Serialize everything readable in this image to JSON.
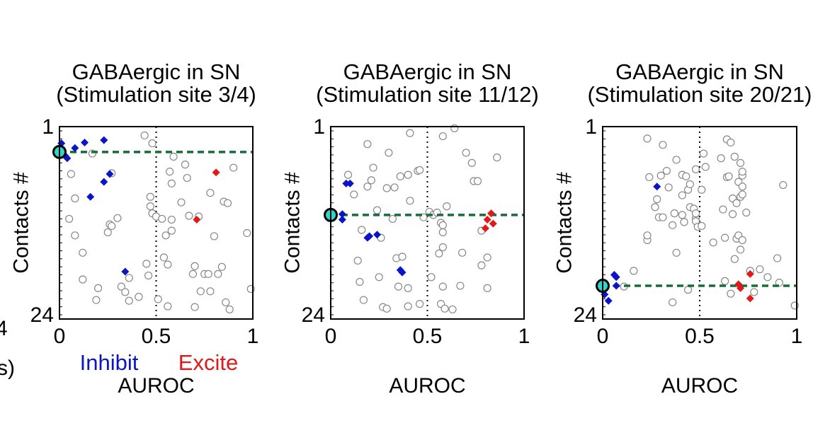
{
  "edge_fragments": [
    "4",
    "s)"
  ],
  "legend": {
    "inhibit_label": "Inhibit",
    "excite_label": "Excite",
    "inhibit_color": "#0a14c8",
    "excite_color": "#e01a1a"
  },
  "colors": {
    "neutral": "#888888",
    "reference_line": "#1a6b3c",
    "stim_marker": "#2fd6c8"
  },
  "chart_data": [
    {
      "type": "scatter",
      "title": [
        "GABAergic in SN",
        "(Stimulation site 3/4)"
      ],
      "xlabel": "AUROC",
      "ylabel": "Contacts #",
      "xlim": [
        0,
        1
      ],
      "ylim": [
        1,
        24
      ],
      "y_inverted": true,
      "x_ticks": [
        "0",
        "0.5",
        "1"
      ],
      "y_ticks": [
        "1",
        "24"
      ],
      "chance_line_x": 0.5,
      "stim_site": 3.5,
      "show_legend": true,
      "neutral": [
        [
          0.06,
          6.3
        ],
        [
          0.08,
          9.4
        ],
        [
          0.08,
          14.1
        ],
        [
          0.12,
          16.3
        ],
        [
          0.05,
          12.0
        ],
        [
          0.12,
          19.7
        ],
        [
          0.17,
          3.7
        ],
        [
          0.19,
          22.3
        ],
        [
          0.2,
          20.8
        ],
        [
          0.25,
          13.7
        ],
        [
          0.26,
          12.7
        ],
        [
          0.27,
          6.2
        ],
        [
          0.27,
          12.9
        ],
        [
          0.3,
          11.9
        ],
        [
          0.32,
          20.6
        ],
        [
          0.34,
          21.3
        ],
        [
          0.36,
          19.5
        ],
        [
          0.36,
          22.4
        ],
        [
          0.41,
          21.9
        ],
        [
          0.44,
          1.4
        ],
        [
          0.45,
          17.7
        ],
        [
          0.46,
          19.2
        ],
        [
          0.47,
          9.2
        ],
        [
          0.47,
          10.4
        ],
        [
          0.48,
          11.3
        ],
        [
          0.48,
          2.4
        ],
        [
          0.5,
          11.7
        ],
        [
          0.51,
          22.2
        ],
        [
          0.53,
          12.0
        ],
        [
          0.54,
          16.9
        ],
        [
          0.55,
          14.1
        ],
        [
          0.56,
          17.8
        ],
        [
          0.56,
          23.1
        ],
        [
          0.57,
          6.0
        ],
        [
          0.58,
          12.1
        ],
        [
          0.58,
          13.5
        ],
        [
          0.58,
          7.5
        ],
        [
          0.59,
          4.1
        ],
        [
          0.63,
          9.9
        ],
        [
          0.65,
          5.1
        ],
        [
          0.66,
          6.8
        ],
        [
          0.67,
          11.6
        ],
        [
          0.69,
          19.0
        ],
        [
          0.7,
          18.0
        ],
        [
          0.7,
          23.2
        ],
        [
          0.72,
          11.7
        ],
        [
          0.73,
          21.2
        ],
        [
          0.75,
          19.0
        ],
        [
          0.77,
          19.0
        ],
        [
          0.78,
          21.2
        ],
        [
          0.78,
          8.7
        ],
        [
          0.8,
          14.2
        ],
        [
          0.82,
          19.0
        ],
        [
          0.84,
          18.1
        ],
        [
          0.85,
          9.8
        ],
        [
          0.86,
          22.6
        ],
        [
          0.87,
          10.0
        ],
        [
          0.88,
          23.5
        ],
        [
          0.9,
          5.5
        ],
        [
          0.97,
          13.8
        ],
        [
          0.99,
          20.9
        ]
      ],
      "inhibit": [
        [
          0.01,
          2.4
        ],
        [
          0.03,
          4.0
        ],
        [
          0.04,
          4.3
        ],
        [
          0.08,
          3.0
        ],
        [
          0.13,
          2.3
        ],
        [
          0.16,
          9.2
        ],
        [
          0.23,
          7.3
        ],
        [
          0.23,
          2.0
        ],
        [
          0.26,
          6.3
        ],
        [
          0.34,
          18.7
        ]
      ],
      "excite": [
        [
          0.71,
          12.1
        ],
        [
          0.81,
          6.1
        ]
      ]
    },
    {
      "type": "scatter",
      "title": [
        "GABAergic in SN",
        "(Stimulation site 11/12)"
      ],
      "xlabel": "AUROC",
      "ylabel": "Contacts #",
      "xlim": [
        0,
        1
      ],
      "ylim": [
        1,
        24
      ],
      "y_inverted": true,
      "x_ticks": [
        "0",
        "0.5",
        "1"
      ],
      "y_ticks": [
        "1",
        "24"
      ],
      "chance_line_x": 0.5,
      "stim_site": 11.5,
      "show_legend": false,
      "neutral": [
        [
          0.09,
          6.4
        ],
        [
          0.12,
          8.9
        ],
        [
          0.14,
          17.3
        ],
        [
          0.15,
          20.0
        ],
        [
          0.16,
          13.4
        ],
        [
          0.17,
          22.3
        ],
        [
          0.19,
          2.5
        ],
        [
          0.19,
          7.9
        ],
        [
          0.21,
          7.1
        ],
        [
          0.22,
          5.5
        ],
        [
          0.24,
          10.9
        ],
        [
          0.25,
          19.4
        ],
        [
          0.26,
          14.4
        ],
        [
          0.27,
          23.2
        ],
        [
          0.29,
          8.1
        ],
        [
          0.29,
          23.4
        ],
        [
          0.3,
          3.6
        ],
        [
          0.32,
          12.0
        ],
        [
          0.33,
          8.0
        ],
        [
          0.34,
          17.0
        ],
        [
          0.35,
          20.6
        ],
        [
          0.36,
          6.6
        ],
        [
          0.37,
          16.8
        ],
        [
          0.4,
          6.4
        ],
        [
          0.4,
          20.8
        ],
        [
          0.4,
          23.1
        ],
        [
          0.41,
          1.1
        ],
        [
          0.41,
          9.7
        ],
        [
          0.45,
          5.9
        ],
        [
          0.46,
          22.8
        ],
        [
          0.46,
          5.8
        ],
        [
          0.48,
          11.8
        ],
        [
          0.51,
          11.1
        ],
        [
          0.52,
          19.4
        ],
        [
          0.53,
          11.5
        ],
        [
          0.55,
          11.2
        ],
        [
          0.56,
          16.4
        ],
        [
          0.57,
          22.8
        ],
        [
          0.57,
          12.5
        ],
        [
          0.58,
          20.6
        ],
        [
          0.59,
          23.4
        ],
        [
          0.58,
          12.8
        ],
        [
          0.58,
          13.7
        ],
        [
          0.58,
          15.6
        ],
        [
          0.58,
          1.5
        ],
        [
          0.6,
          10.4
        ],
        [
          0.63,
          23.5
        ],
        [
          0.64,
          0.5
        ],
        [
          0.67,
          20.5
        ],
        [
          0.68,
          16.3
        ],
        [
          0.7,
          3.6
        ],
        [
          0.73,
          4.9
        ],
        [
          0.74,
          7.2
        ],
        [
          0.76,
          7.2
        ],
        [
          0.78,
          13.5
        ],
        [
          0.78,
          17.9
        ],
        [
          0.81,
          16.9
        ],
        [
          0.81,
          20.8
        ],
        [
          0.86,
          4.2
        ]
      ],
      "inhibit": [
        [
          0.06,
          11.4
        ],
        [
          0.06,
          12.1
        ],
        [
          0.08,
          7.5
        ],
        [
          0.1,
          7.5
        ],
        [
          0.19,
          14.4
        ],
        [
          0.2,
          14.2
        ],
        [
          0.24,
          14.0
        ],
        [
          0.36,
          18.5
        ],
        [
          0.37,
          18.8
        ]
      ],
      "excite": [
        [
          0.8,
          13.2
        ],
        [
          0.81,
          12.1
        ],
        [
          0.83,
          11.3
        ],
        [
          0.84,
          12.6
        ]
      ]
    },
    {
      "type": "scatter",
      "title": [
        "GABAergic in SN",
        "(Stimulation site 20/21)"
      ],
      "xlabel": "AUROC",
      "ylabel": "Contacts #",
      "xlim": [
        0,
        1
      ],
      "ylim": [
        1,
        24
      ],
      "y_inverted": true,
      "x_ticks": [
        "0",
        "0.5",
        "1"
      ],
      "y_ticks": [
        "1",
        "24"
      ],
      "chance_line_x": 0.5,
      "stim_site": 20.5,
      "show_legend": false,
      "neutral": [
        [
          0.11,
          20.6
        ],
        [
          0.16,
          18.6
        ],
        [
          0.23,
          14.7
        ],
        [
          0.23,
          14.1
        ],
        [
          0.23,
          1.8
        ],
        [
          0.24,
          6.7
        ],
        [
          0.27,
          10.5
        ],
        [
          0.28,
          9.5
        ],
        [
          0.29,
          11.8
        ],
        [
          0.31,
          11.8
        ],
        [
          0.3,
          6.5
        ],
        [
          0.31,
          2.6
        ],
        [
          0.33,
          5.9
        ],
        [
          0.34,
          8.0
        ],
        [
          0.36,
          22.6
        ],
        [
          0.36,
          12.8
        ],
        [
          0.37,
          11.3
        ],
        [
          0.38,
          16.3
        ],
        [
          0.38,
          4.5
        ],
        [
          0.41,
          9.0
        ],
        [
          0.41,
          6.4
        ],
        [
          0.41,
          11.5
        ],
        [
          0.42,
          12.4
        ],
        [
          0.43,
          6.6
        ],
        [
          0.44,
          8.3
        ],
        [
          0.44,
          21.0
        ],
        [
          0.45,
          10.5
        ],
        [
          0.45,
          7.6
        ],
        [
          0.47,
          10.7
        ],
        [
          0.48,
          5.7
        ],
        [
          0.48,
          11.9
        ],
        [
          0.48,
          12.3
        ],
        [
          0.48,
          11.3
        ],
        [
          0.49,
          13.0
        ],
        [
          0.51,
          8.3
        ],
        [
          0.51,
          12.9
        ],
        [
          0.52,
          3.7
        ],
        [
          0.53,
          5.4
        ],
        [
          0.57,
          15.0
        ],
        [
          0.61,
          4.3
        ],
        [
          0.62,
          10.8
        ],
        [
          0.63,
          14.4
        ],
        [
          0.63,
          19.9
        ],
        [
          0.64,
          6.7
        ],
        [
          0.64,
          1.9
        ],
        [
          0.65,
          6.6
        ],
        [
          0.66,
          2.3
        ],
        [
          0.66,
          21.5
        ],
        [
          0.67,
          9.4
        ],
        [
          0.67,
          11.4
        ],
        [
          0.68,
          17.1
        ],
        [
          0.68,
          4.1
        ],
        [
          0.69,
          10.0
        ],
        [
          0.69,
          14.5
        ],
        [
          0.7,
          14.1
        ],
        [
          0.7,
          7.3
        ],
        [
          0.71,
          4.9
        ],
        [
          0.71,
          9.2
        ],
        [
          0.72,
          14.7
        ],
        [
          0.72,
          6.5
        ],
        [
          0.71,
          15.9
        ],
        [
          0.72,
          7.9
        ],
        [
          0.72,
          8.9
        ],
        [
          0.72,
          6.0
        ],
        [
          0.74,
          11.2
        ],
        [
          0.76,
          18.6
        ],
        [
          0.78,
          21.3
        ],
        [
          0.81,
          18.4
        ],
        [
          0.85,
          19.4
        ],
        [
          0.9,
          17.0
        ],
        [
          0.91,
          20.1
        ],
        [
          0.93,
          7.7
        ],
        [
          0.99,
          23.0
        ]
      ],
      "inhibit": [
        [
          0.01,
          21.6
        ],
        [
          0.03,
          22.4
        ],
        [
          0.06,
          19.1
        ],
        [
          0.07,
          19.4
        ],
        [
          0.07,
          20.5
        ],
        [
          0.28,
          7.9
        ]
      ],
      "excite": [
        [
          0.7,
          20.3
        ],
        [
          0.71,
          20.8
        ],
        [
          0.76,
          19.0
        ],
        [
          0.76,
          22.1
        ]
      ]
    }
  ]
}
